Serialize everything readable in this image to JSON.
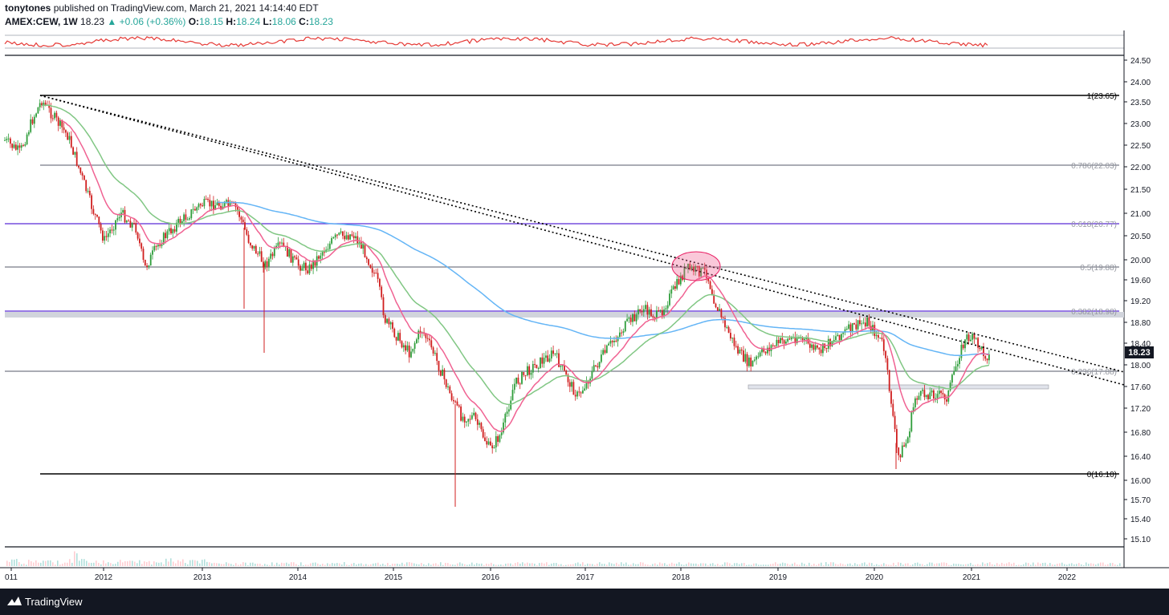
{
  "header": {
    "publisher": "tonytones",
    "published_text": "published on TradingView.com, March 21, 2021 14:14:40 EDT",
    "symbol": "AMEX:CEW, 1W",
    "last": "18.23",
    "change": "+0.06 (+0.36%)",
    "o_label": "O:",
    "o": "18.15",
    "h_label": "H:",
    "h": "18.24",
    "l_label": "L:",
    "l": "18.06",
    "c_label": "C:",
    "c": "18.23"
  },
  "price_axis": {
    "ticks": [
      "24.50",
      "24.00",
      "23.50",
      "23.00",
      "22.50",
      "22.00",
      "21.50",
      "21.00",
      "20.50",
      "20.00",
      "19.60",
      "19.20",
      "18.80",
      "18.40",
      "18.00",
      "17.60",
      "17.20",
      "16.80",
      "16.40",
      "16.00",
      "15.70",
      "15.40",
      "15.10"
    ],
    "current_price": "18.23"
  },
  "time_axis": {
    "ticks": [
      "011",
      "2012",
      "2013",
      "2014",
      "2015",
      "2016",
      "2017",
      "2018",
      "2019",
      "2020",
      "2021",
      "2022"
    ]
  },
  "fib_levels": [
    {
      "label": "1(23.65)",
      "color": "#000000"
    },
    {
      "label": "0.786(22.03)",
      "color": "#787b86"
    },
    {
      "label": "0.618(20.77)",
      "color": "#5b2bd6"
    },
    {
      "label": "0.5(19.88)",
      "color": "#787b86"
    },
    {
      "label": "0.382(18.98)",
      "color": "#5b2bd6"
    },
    {
      "label": "0.236(17.88)",
      "color": "#787b86"
    },
    {
      "label": "0(16.10)",
      "color": "#000000"
    }
  ],
  "colors": {
    "up": "#26a69a",
    "candle_up": "#2e9d3a",
    "candle_down": "#d01f1f",
    "ema_fast": "#f06292",
    "ema_mid": "#81c784",
    "ema_slow": "#64b5f6",
    "rsi": "#e53935",
    "footer_bg": "#131722"
  },
  "footer": {
    "brand": "TradingView",
    "logo_icon": "tradingview-logo-icon"
  }
}
